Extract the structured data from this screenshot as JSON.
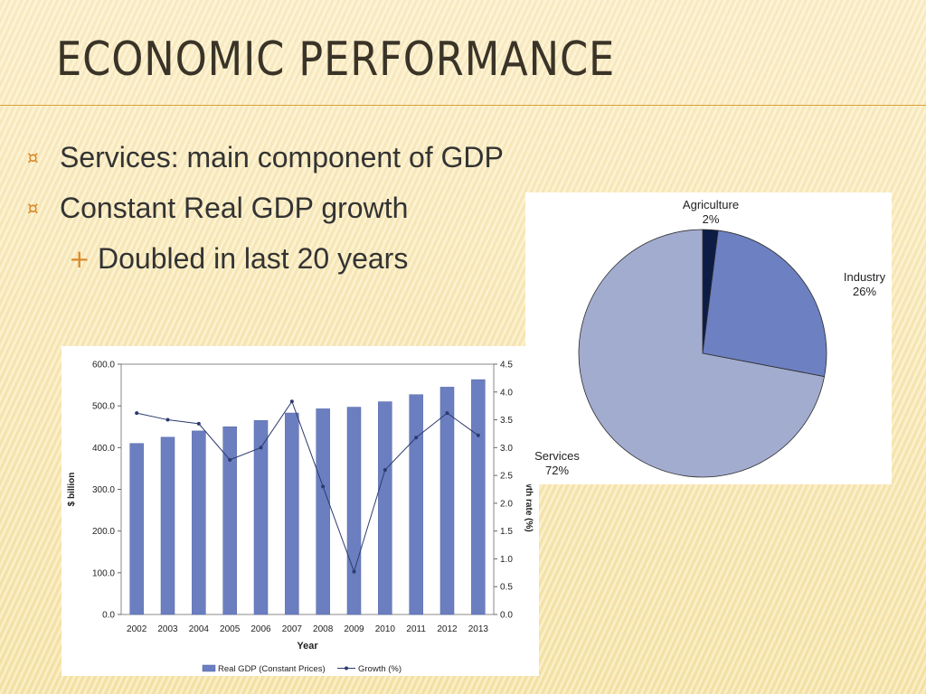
{
  "slide": {
    "title": "ECONOMIC PERFORMANCE",
    "bullets": [
      {
        "marker": "¤",
        "text": "Services: main component of GDP"
      },
      {
        "marker": "¤",
        "text": "Constant Real GDP growth"
      },
      {
        "marker": "+",
        "text": "Doubled in last 20 years"
      }
    ]
  },
  "colors": {
    "accent": "#d9a23c",
    "bar": "#6b7fc0",
    "line": "#2c3a6e"
  },
  "chart_data": [
    {
      "type": "bar",
      "categories": [
        "2002",
        "2003",
        "2004",
        "2005",
        "2006",
        "2007",
        "2008",
        "2009",
        "2010",
        "2011",
        "2012",
        "2013"
      ],
      "series": [
        {
          "name": "Real GDP (Constant Prices)",
          "type": "bar",
          "axis": "left",
          "values": [
            410,
            425,
            440,
            450,
            465,
            483,
            493,
            497,
            510,
            527,
            545,
            563
          ]
        },
        {
          "name": "Growth (%)",
          "type": "line",
          "axis": "right",
          "values": [
            3.62,
            3.5,
            3.43,
            2.78,
            3.0,
            3.83,
            2.3,
            0.77,
            2.6,
            3.18,
            3.62,
            3.22
          ]
        }
      ],
      "xlabel": "Year",
      "ylabel": "$ billion",
      "y2label": "Growth rate (%)",
      "ylim": [
        0,
        600
      ],
      "y2lim": [
        0,
        4.5
      ],
      "yticks": [
        "0.0",
        "100.0",
        "200.0",
        "300.0",
        "400.0",
        "500.0",
        "600.0"
      ],
      "y2ticks": [
        "0.0",
        "0.5",
        "1.0",
        "1.5",
        "2.0",
        "2.5",
        "3.0",
        "3.5",
        "4.0",
        "4.5"
      ],
      "legend": "bottom",
      "grid": false
    },
    {
      "type": "pie",
      "slices": [
        {
          "label": "Agriculture",
          "value": 2,
          "pct": "2%",
          "color": "#0d1c44"
        },
        {
          "label": "Industry",
          "value": 26,
          "pct": "26%",
          "color": "#6d80c1"
        },
        {
          "label": "Services",
          "value": 72,
          "pct": "72%",
          "color": "#a2accf"
        }
      ]
    }
  ]
}
